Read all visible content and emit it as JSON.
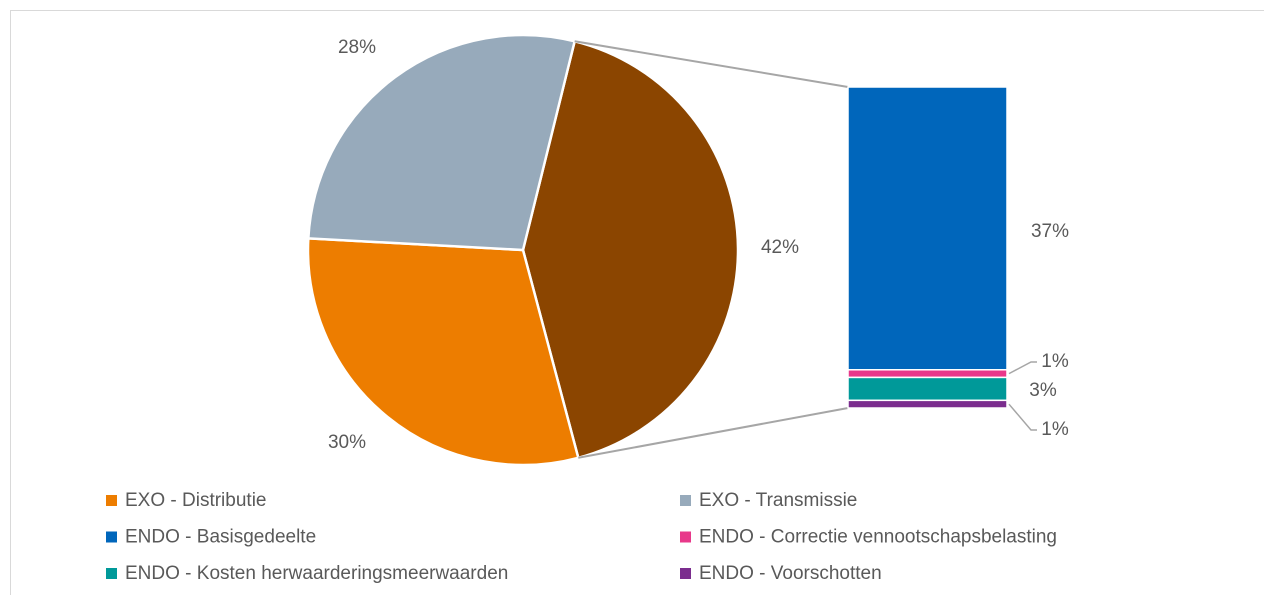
{
  "chart_data": {
    "type": "bar-of-pie",
    "pie": {
      "categories": [
        "EXO - Distributie",
        "EXO - Transmissie",
        null
      ],
      "values": [
        30,
        28,
        42
      ],
      "value_labels": [
        "30%",
        "28%",
        "42%"
      ],
      "colors": [
        "#ED7D00",
        "#97AABB",
        "#8B4500"
      ]
    },
    "bar": {
      "categories": [
        "ENDO - Basisgedeelte",
        "ENDO - Correctie vennootschapsbelasting",
        "ENDO - Kosten herwaarderingsmeerwaarden",
        "ENDO - Voorschotten"
      ],
      "values": [
        37,
        1,
        3,
        1
      ],
      "value_labels": [
        "37%",
        "1%",
        "3%",
        "1%"
      ],
      "colors": [
        "#0066BB",
        "#E8388A",
        "#009999",
        "#7B2D8E"
      ]
    }
  }
}
